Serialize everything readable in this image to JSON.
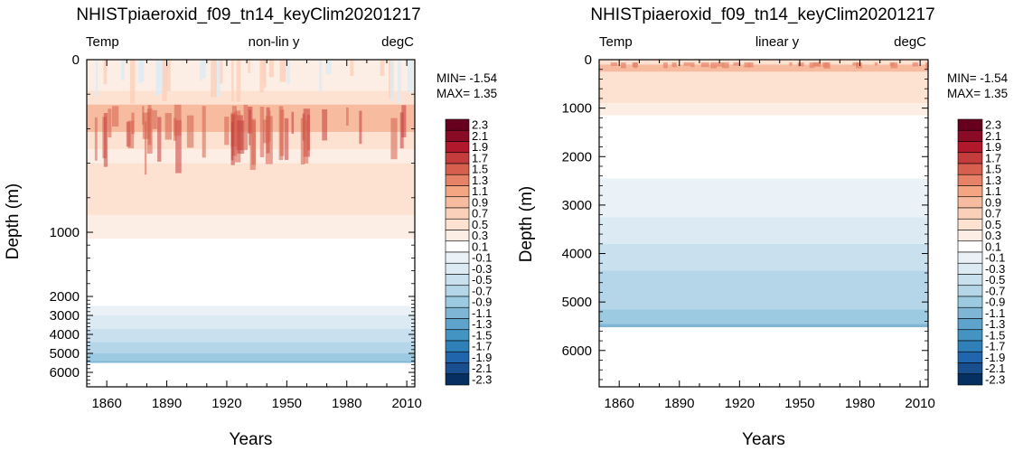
{
  "chart_data": [
    {
      "type": "heatmap",
      "title": "NHISTpiaeroxid_f09_tn14_keyClim20201217",
      "header_left": "Temp",
      "header_center": "non-lin y",
      "header_right": "degC",
      "xlabel": "Years",
      "ylabel": "Depth (m)",
      "x_ticks": [
        "1860",
        "1890",
        "1920",
        "1950",
        "1980",
        "2010"
      ],
      "x_tick_values": [
        1860,
        1890,
        1920,
        1950,
        1980,
        2010
      ],
      "xlim": [
        1850,
        2014
      ],
      "y_scale": "non-linear",
      "y_ticks": [
        "0",
        "1000",
        "2000",
        "3000",
        "4000",
        "5000",
        "6000"
      ],
      "y_tick_values": [
        0,
        1000,
        2000,
        3000,
        4000,
        5000,
        6000
      ],
      "ylim": [
        6750,
        0
      ],
      "min_label": "MIN= -1.54",
      "max_label": "MAX=  1.35",
      "depth_bands": [
        {
          "top": 0,
          "bottom": 100,
          "value": 0.1
        },
        {
          "top": 100,
          "bottom": 180,
          "value": 0.2
        },
        {
          "top": 180,
          "bottom": 260,
          "value": 0.4
        },
        {
          "top": 260,
          "bottom": 420,
          "value": 0.8
        },
        {
          "top": 420,
          "bottom": 520,
          "value": 0.4
        },
        {
          "top": 520,
          "bottom": 600,
          "value": 0.2
        },
        {
          "top": 600,
          "bottom": 900,
          "value": 0.4
        },
        {
          "top": 900,
          "bottom": 1100,
          "value": 0.2
        },
        {
          "top": 1100,
          "bottom": 2500,
          "value": 0.0
        },
        {
          "top": 2500,
          "bottom": 3000,
          "value": -0.2
        },
        {
          "top": 3000,
          "bottom": 3700,
          "value": -0.4
        },
        {
          "top": 3700,
          "bottom": 4400,
          "value": -0.6
        },
        {
          "top": 4400,
          "bottom": 5000,
          "value": -0.8
        },
        {
          "top": 5000,
          "bottom": 5400,
          "value": -1.0
        },
        {
          "top": 5400,
          "bottom": 5500,
          "value": -1.2
        }
      ]
    },
    {
      "type": "heatmap",
      "title": "NHISTpiaeroxid_f09_tn14_keyClim20201217",
      "header_left": "Temp",
      "header_center": "linear y",
      "header_right": "degC",
      "xlabel": "Years",
      "ylabel": "Depth (m)",
      "x_ticks": [
        "1860",
        "1890",
        "1920",
        "1950",
        "1980",
        "2010"
      ],
      "x_tick_values": [
        1860,
        1890,
        1920,
        1950,
        1980,
        2010
      ],
      "xlim": [
        1850,
        2014
      ],
      "y_scale": "linear",
      "y_ticks": [
        "0",
        "1000",
        "2000",
        "3000",
        "4000",
        "5000",
        "6000"
      ],
      "y_tick_values": [
        0,
        1000,
        2000,
        3000,
        4000,
        5000,
        6000
      ],
      "ylim": [
        6750,
        0
      ],
      "min_label": "MIN= -1.54",
      "max_label": "MAX=  1.35",
      "depth_bands": [
        {
          "top": 0,
          "bottom": 100,
          "value": 0.4
        },
        {
          "top": 100,
          "bottom": 250,
          "value": 0.8
        },
        {
          "top": 250,
          "bottom": 450,
          "value": 0.4
        },
        {
          "top": 450,
          "bottom": 900,
          "value": 0.4
        },
        {
          "top": 900,
          "bottom": 1150,
          "value": 0.2
        },
        {
          "top": 1150,
          "bottom": 2450,
          "value": 0.0
        },
        {
          "top": 2450,
          "bottom": 3250,
          "value": -0.2
        },
        {
          "top": 3250,
          "bottom": 3800,
          "value": -0.4
        },
        {
          "top": 3800,
          "bottom": 4350,
          "value": -0.6
        },
        {
          "top": 4350,
          "bottom": 5150,
          "value": -0.8
        },
        {
          "top": 5150,
          "bottom": 5450,
          "value": -1.0
        },
        {
          "top": 5450,
          "bottom": 5520,
          "value": -1.2
        }
      ]
    }
  ],
  "colorbar": {
    "labels": [
      "2.3",
      "2.1",
      "1.9",
      "1.7",
      "1.5",
      "1.3",
      "1.1",
      "0.9",
      "0.7",
      "0.5",
      "0.3",
      "0.1",
      "-0.1",
      "-0.3",
      "-0.5",
      "-0.7",
      "-0.9",
      "-1.1",
      "-1.3",
      "-1.5",
      "-1.7",
      "-1.9",
      "-2.1",
      "-2.3"
    ],
    "colors": [
      "#67001f",
      "#8a0b25",
      "#b2182b",
      "#c43c3c",
      "#d6604d",
      "#e58268",
      "#f4a582",
      "#f7bb9f",
      "#fbd0b9",
      "#fde2d2",
      "#fdeee5",
      "#ffffff",
      "#eaf2f7",
      "#dcebf3",
      "#c9e0ee",
      "#b4d6e8",
      "#9ccae1",
      "#7fb6d6",
      "#5ea3cb",
      "#4393c3",
      "#2f7fb8",
      "#2166ac",
      "#1a4f8f",
      "#053061"
    ]
  }
}
